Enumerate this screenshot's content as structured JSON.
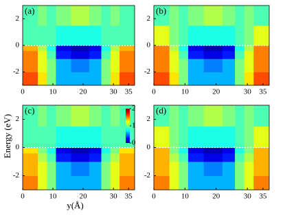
{
  "chart_data": [
    {
      "type": "heatmap",
      "label": "(a)",
      "xlim": [
        0,
        37
      ],
      "ylim": [
        -3,
        3
      ],
      "xticks": [
        0,
        10,
        20,
        30,
        35
      ],
      "yticks": [
        -2,
        0,
        2
      ],
      "hline": 0,
      "x_edges": [
        0,
        5,
        8,
        11,
        16,
        22,
        26,
        29,
        32,
        37
      ],
      "y_edges": [
        -3,
        -2,
        -1,
        -0.4,
        0,
        1.5,
        3
      ],
      "z": [
        [
          1.6,
          1.3,
          1.0,
          0.6,
          0.6,
          0.6,
          1.0,
          1.3,
          1.6
        ],
        [
          1.5,
          1.2,
          1.0,
          0.6,
          0.5,
          0.6,
          1.0,
          1.2,
          1.5
        ],
        [
          1.5,
          1.2,
          0.9,
          0.3,
          0.2,
          0.3,
          0.9,
          1.2,
          1.5
        ],
        [
          1.4,
          1.1,
          0.8,
          0.2,
          0.1,
          0.2,
          0.8,
          1.1,
          1.4
        ],
        [
          0.9,
          0.9,
          0.9,
          0.8,
          0.8,
          0.8,
          0.9,
          0.9,
          0.9
        ],
        [
          0.9,
          1.0,
          0.9,
          1.0,
          1.1,
          1.0,
          0.9,
          1.0,
          0.9
        ]
      ]
    },
    {
      "type": "heatmap",
      "label": "(b)",
      "xlim": [
        0,
        37
      ],
      "ylim": [
        -3,
        3
      ],
      "xticks": [
        0,
        10,
        20,
        30,
        35
      ],
      "yticks": [
        -2,
        0,
        2
      ],
      "hline": 0,
      "x_edges": [
        0,
        5,
        8,
        11,
        16,
        22,
        26,
        29,
        32,
        37
      ],
      "y_edges": [
        -3,
        -2,
        -1,
        -0.4,
        0,
        1.5,
        3
      ],
      "z": [
        [
          1.6,
          1.3,
          1.0,
          0.6,
          0.6,
          0.6,
          1.0,
          1.3,
          1.6
        ],
        [
          1.5,
          1.2,
          1.0,
          0.6,
          0.5,
          0.6,
          1.0,
          1.2,
          1.5
        ],
        [
          1.5,
          1.2,
          0.9,
          0.3,
          0.2,
          0.3,
          0.9,
          1.2,
          1.5
        ],
        [
          1.5,
          1.1,
          0.8,
          0.2,
          0.1,
          0.2,
          0.8,
          1.1,
          1.5
        ],
        [
          1.2,
          1.0,
          0.9,
          0.8,
          0.8,
          0.8,
          0.9,
          1.0,
          1.2
        ],
        [
          0.9,
          1.0,
          0.9,
          1.0,
          1.1,
          1.0,
          0.9,
          1.0,
          0.9
        ]
      ]
    },
    {
      "type": "heatmap",
      "label": "(c)",
      "xlim": [
        0,
        37
      ],
      "ylim": [
        -3,
        3
      ],
      "xticks": [
        0,
        10,
        20,
        30,
        35
      ],
      "yticks": [
        -2,
        0,
        2
      ],
      "hline": 0,
      "xlabel": "y(Å)",
      "ylabel": "Energy (eV)",
      "colorbar": {
        "clim": [
          0,
          2
        ],
        "ticks": [
          0,
          1,
          2
        ]
      },
      "x_edges": [
        0,
        5,
        8,
        11,
        16,
        22,
        26,
        29,
        32,
        37
      ],
      "y_edges": [
        -3,
        -2,
        -1,
        -0.4,
        0,
        1.5,
        3
      ],
      "z": [
        [
          1.5,
          1.2,
          1.0,
          0.6,
          0.6,
          0.6,
          1.0,
          1.2,
          1.5
        ],
        [
          1.4,
          1.2,
          1.0,
          0.6,
          0.5,
          0.6,
          1.0,
          1.2,
          1.4
        ],
        [
          1.4,
          1.1,
          0.9,
          0.3,
          0.2,
          0.3,
          0.9,
          1.1,
          1.4
        ],
        [
          1.3,
          1.0,
          0.8,
          0.2,
          0.1,
          0.2,
          0.8,
          1.0,
          1.3
        ],
        [
          0.9,
          0.9,
          0.9,
          0.8,
          0.8,
          0.8,
          0.9,
          0.9,
          0.9
        ],
        [
          0.9,
          1.0,
          0.9,
          1.0,
          1.1,
          1.0,
          0.9,
          1.0,
          0.9
        ]
      ]
    },
    {
      "type": "heatmap",
      "label": "(d)",
      "xlim": [
        0,
        37
      ],
      "ylim": [
        -3,
        3
      ],
      "xticks": [
        0,
        10,
        20,
        30,
        35
      ],
      "yticks": [
        -2,
        0,
        2
      ],
      "hline": 0,
      "x_edges": [
        0,
        5,
        8,
        11,
        16,
        22,
        26,
        29,
        32,
        37
      ],
      "y_edges": [
        -3,
        -2,
        -1,
        -0.4,
        0,
        1.5,
        3
      ],
      "z": [
        [
          1.5,
          1.2,
          1.0,
          0.6,
          0.6,
          0.6,
          1.0,
          1.2,
          1.5
        ],
        [
          1.4,
          1.2,
          1.0,
          0.6,
          0.5,
          0.6,
          1.0,
          1.2,
          1.4
        ],
        [
          1.4,
          1.1,
          0.9,
          0.3,
          0.2,
          0.3,
          0.9,
          1.1,
          1.4
        ],
        [
          1.4,
          1.0,
          0.8,
          0.2,
          0.1,
          0.2,
          0.8,
          1.0,
          1.4
        ],
        [
          1.2,
          1.0,
          0.9,
          0.8,
          0.8,
          0.8,
          0.9,
          1.0,
          1.2
        ],
        [
          0.9,
          1.0,
          0.9,
          1.0,
          1.1,
          1.0,
          0.9,
          1.0,
          0.9
        ]
      ]
    }
  ]
}
